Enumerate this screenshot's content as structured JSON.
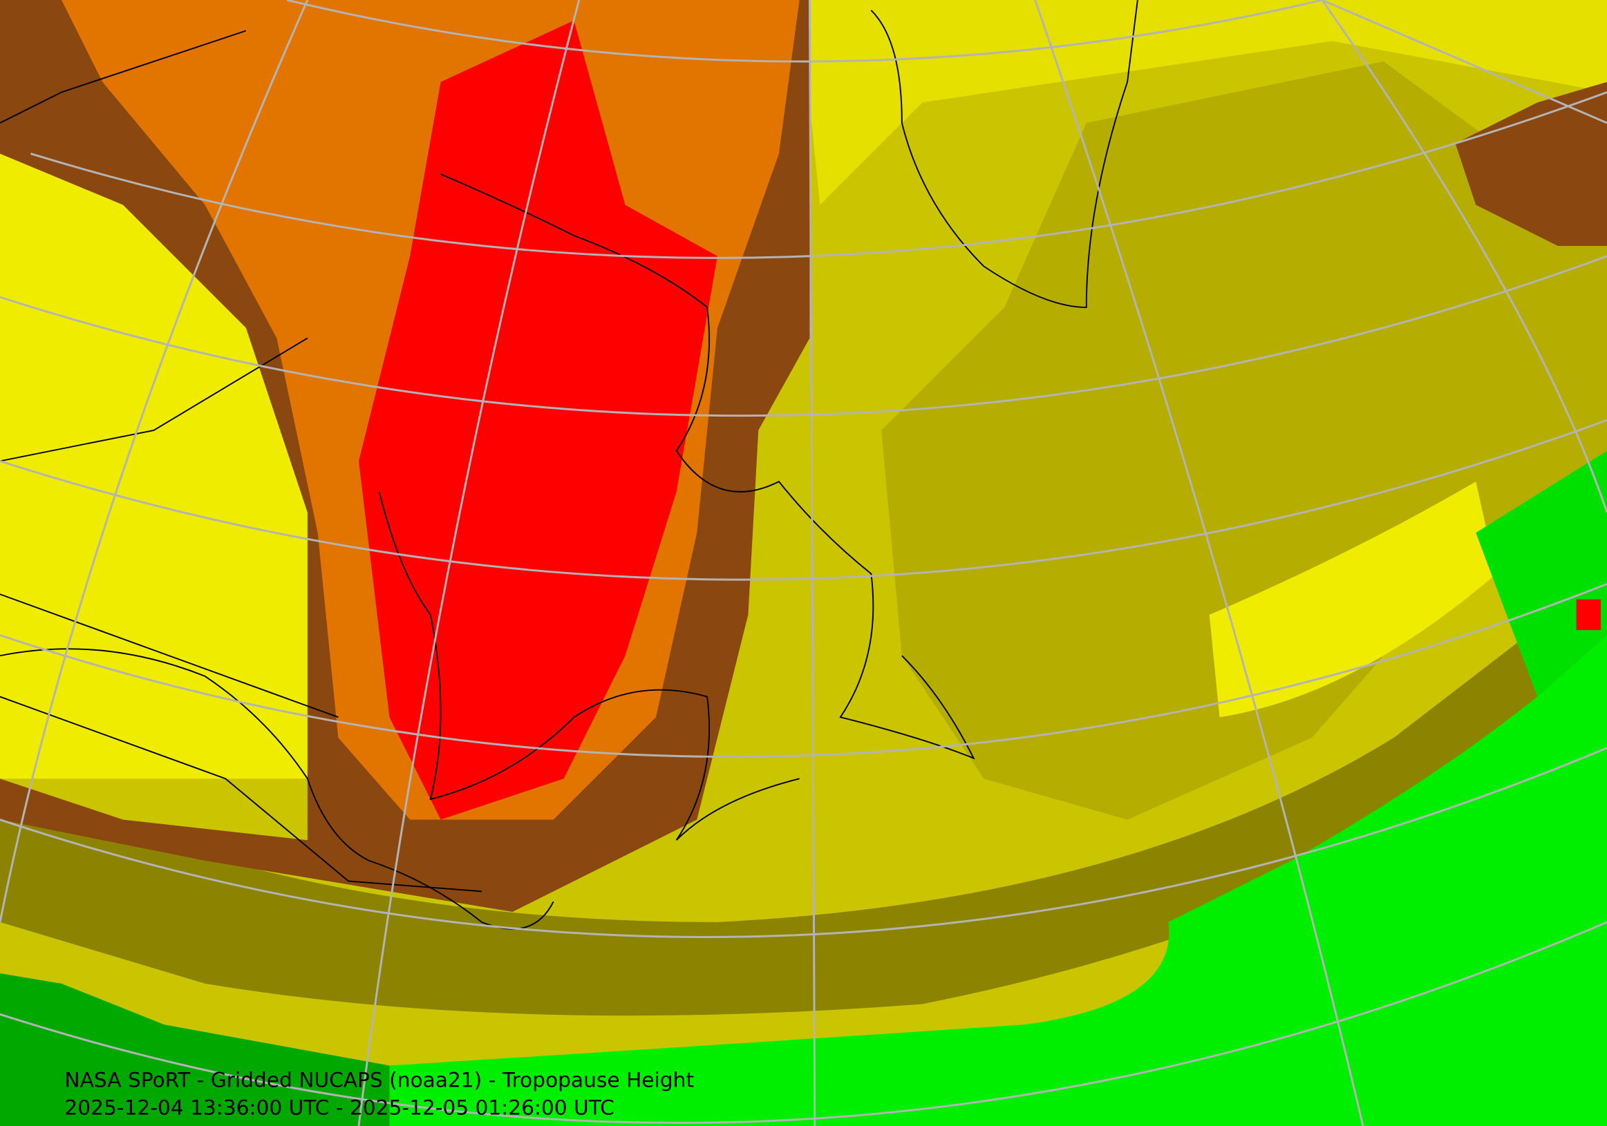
{
  "title": "NASA SPoRT - Gridded NUCAPS (noaa21) - Tropopause Height",
  "time_range": "2025-12-04 13:36:00 UTC - 2025-12-05 01:26:00 UTC"
}
